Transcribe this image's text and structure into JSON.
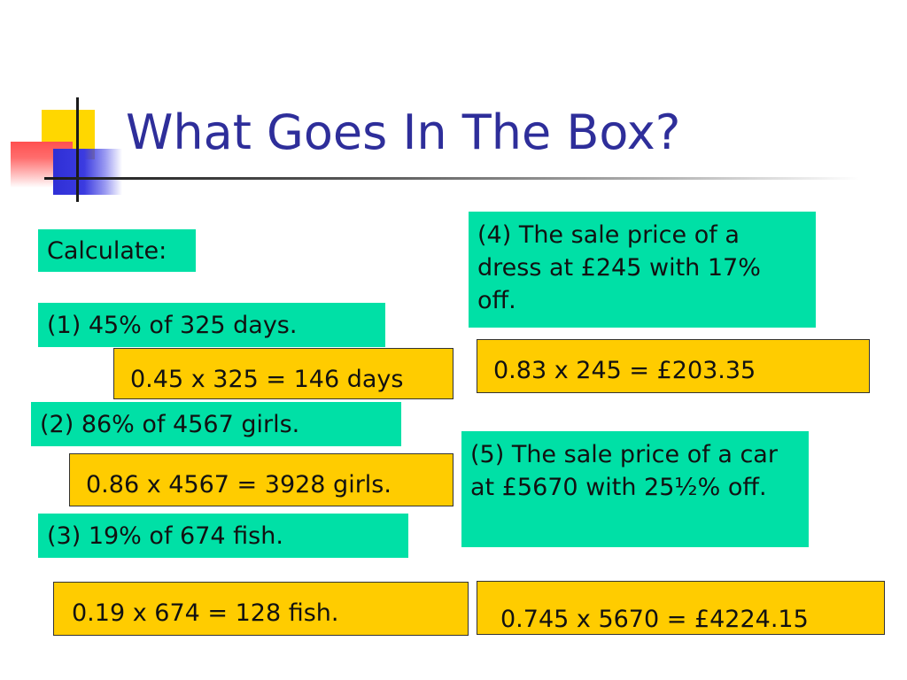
{
  "title": "What Goes In The Box?",
  "colors": {
    "title": "#2e2e9a",
    "question_box": "#00e0a6",
    "answer_box": "#ffcc00",
    "accent_yellow": "#ffd700",
    "accent_blue": "#2f2fd6",
    "accent_red": "#ff5050"
  },
  "instruction": "Calculate:",
  "questions": [
    "(1) 45% of 325 days.",
    "(2) 86% of 4567 girls.",
    "(3) 19% of 674 fish.",
    "(4) The sale price of a dress at £245 with 17% off.",
    "(5) The sale price of a car at £5670 with 25½%  off."
  ],
  "answers": [
    "0.45 x 325 = 146 days",
    "0.86 x 4567 = 3928 girls.",
    "0.19 x 674 = 128 fish.",
    "0.83 x 245 = £203.35",
    "0.745 x 5670 = £4224.15"
  ]
}
